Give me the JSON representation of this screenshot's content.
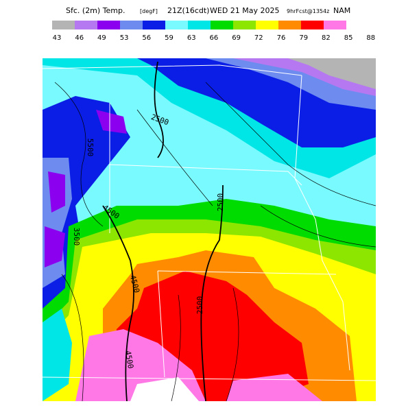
{
  "header": {
    "title_parts": [
      "Sfc. (2m) Temp.",
      "[degF]",
      "21Z(16cdt)",
      "WED 21 May 2025",
      "9hrFcst@1354z",
      "NAM"
    ]
  },
  "colorbar": {
    "labels": [
      43,
      46,
      49,
      53,
      56,
      59,
      63,
      66,
      69,
      72,
      76,
      79,
      82,
      85,
      88
    ],
    "colors": [
      "#b4b4b4",
      "#b678f0",
      "#8c00f0",
      "#6e8cf0",
      "#0a1ee6",
      "#78faff",
      "#00e6e6",
      "#00dc00",
      "#8ce600",
      "#ffff00",
      "#ff8c00",
      "#ff0000",
      "#ff78e6"
    ]
  },
  "contour_labels": [
    "2500",
    "2500",
    "2500",
    "4500",
    "4500",
    "4500",
    "5500",
    "3500"
  ]
}
